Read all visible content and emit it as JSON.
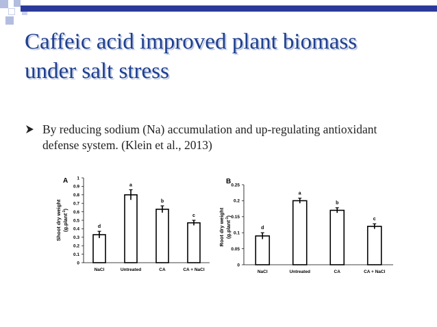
{
  "slide": {
    "title": "Caffeic  acid  improved  plant biomass under salt stress",
    "bullet_icon": "arrowhead-bullet-icon",
    "bullet_text": "By reducing sodium (Na) accumulation and up-regulating antioxidant defense system. (Klein et al., 2013)",
    "colors": {
      "title": "#1f3f8f",
      "accent_bar": "#2b3a9a",
      "deco_squares": "#b3bde0",
      "bars": "#ffffff",
      "outline": "#000000"
    }
  },
  "chart_data": [
    {
      "type": "bar",
      "panel_label": "A",
      "categories": [
        "NaCl",
        "Untreated",
        "CA",
        "CA + NaCl"
      ],
      "values": [
        0.33,
        0.8,
        0.63,
        0.47
      ],
      "errors": [
        0.04,
        0.06,
        0.04,
        0.03
      ],
      "letters": [
        "d",
        "a",
        "b",
        "c"
      ],
      "ylabel_line1": "Shoot dry weight",
      "ylabel_line2": "(g.plant",
      "ylabel_sup": "-1",
      "ylabel_close": ")",
      "ylim": [
        0,
        1
      ],
      "yticks": [
        "0",
        "0.1",
        "0.2",
        "0.3",
        "0.4",
        "0.5",
        "0.6",
        "0.7",
        "0.8",
        "0.9",
        "1"
      ],
      "grid": false
    },
    {
      "type": "bar",
      "panel_label": "B",
      "categories": [
        "NaCl",
        "Untreated",
        "CA",
        "CA + NaCl"
      ],
      "values": [
        0.09,
        0.2,
        0.17,
        0.12
      ],
      "errors": [
        0.01,
        0.008,
        0.008,
        0.008
      ],
      "letters": [
        "d",
        "a",
        "b",
        "c"
      ],
      "ylabel_line1": "Root dry weight",
      "ylabel_line2": "(g.plant",
      "ylabel_sup": "-1",
      "ylabel_close": ")",
      "ylim": [
        0,
        0.25
      ],
      "yticks": [
        "0",
        "0.05",
        "0.1",
        "0.15",
        "0.2",
        "0.25"
      ],
      "grid": false
    }
  ]
}
